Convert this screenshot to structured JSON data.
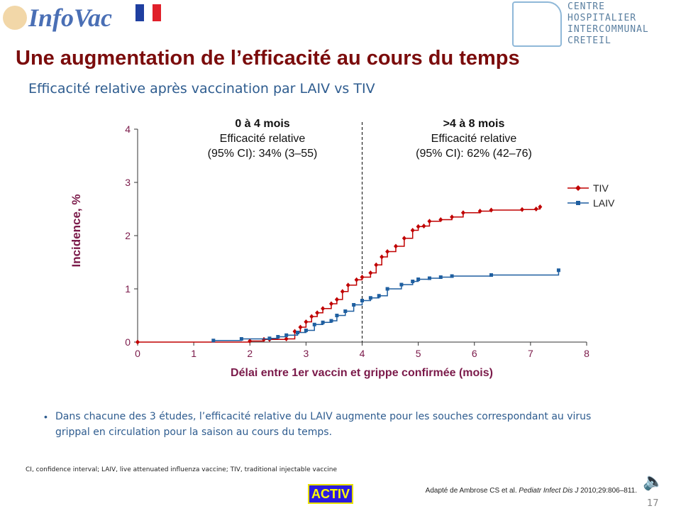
{
  "header": {
    "logo_text": "InfoVac",
    "flag_colors": [
      "#1f3fa0",
      "#ffffff",
      "#e0202a"
    ],
    "hospital_logo_lines": [
      "CENTRE",
      "HOSPITALIER",
      "INTERCOMMUNAL",
      "CRETEIL"
    ]
  },
  "title": "Une augmentation de l’efficacité au cours du temps",
  "subtitle": "Efficacité relative après vaccination par LAIV vs TIV",
  "chart_data": {
    "type": "line",
    "step": true,
    "xlabel": "Délai entre 1er vaccin et grippe confirmée (mois)",
    "ylabel": "Incidence, %",
    "xlim": [
      0,
      8
    ],
    "ylim": [
      0,
      4
    ],
    "xticks": [
      "0",
      "1",
      "2",
      "3",
      "4",
      "5",
      "6",
      "7",
      "8"
    ],
    "yticks": [
      "0",
      "1",
      "2",
      "3",
      "4"
    ],
    "grid": false,
    "legend_position": "right",
    "vline_x": 4,
    "annotations": [
      {
        "heading": "0  à 4 mois",
        "line1": "Efficacité relative",
        "line2": "(95% CI): 34% (3–55)"
      },
      {
        "heading": ">4 à 8 mois",
        "line1": "Efficacité relative",
        "line2": "(95% CI): 62% (42–76)"
      }
    ],
    "series": [
      {
        "name": "TIV",
        "color": "#c00000",
        "marker": "diamond",
        "x": [
          0,
          2.0,
          2.25,
          2.35,
          2.65,
          2.8,
          2.9,
          3.0,
          3.1,
          3.2,
          3.3,
          3.45,
          3.55,
          3.65,
          3.75,
          3.9,
          4.0,
          4.15,
          4.25,
          4.35,
          4.45,
          4.6,
          4.75,
          4.9,
          5.0,
          5.1,
          5.2,
          5.4,
          5.6,
          5.8,
          6.1,
          6.3,
          6.85,
          7.1,
          7.17
        ],
        "y": [
          0,
          0.02,
          0.05,
          0.05,
          0.06,
          0.2,
          0.28,
          0.38,
          0.48,
          0.55,
          0.63,
          0.72,
          0.8,
          0.95,
          1.07,
          1.17,
          1.22,
          1.3,
          1.45,
          1.6,
          1.7,
          1.8,
          1.95,
          2.1,
          2.17,
          2.18,
          2.27,
          2.3,
          2.35,
          2.43,
          2.46,
          2.48,
          2.49,
          2.5,
          2.54
        ]
      },
      {
        "name": "LAIV",
        "color": "#1f5fa0",
        "marker": "square",
        "x": [
          1.35,
          1.85,
          2.35,
          2.5,
          2.65,
          2.85,
          3.0,
          3.15,
          3.3,
          3.45,
          3.55,
          3.7,
          3.85,
          4.0,
          4.15,
          4.3,
          4.45,
          4.7,
          4.9,
          5.0,
          5.2,
          5.4,
          5.6,
          6.3,
          7.5
        ],
        "y": [
          0.03,
          0.06,
          0.07,
          0.1,
          0.13,
          0.18,
          0.22,
          0.33,
          0.37,
          0.4,
          0.5,
          0.58,
          0.7,
          0.78,
          0.83,
          0.87,
          1.0,
          1.08,
          1.14,
          1.18,
          1.2,
          1.22,
          1.24,
          1.26,
          1.35
        ]
      }
    ]
  },
  "bullet": "Dans chacune des 3 études, l’efficacité relative du LAIV augmente pour les souches correspondant au virus  grippal en circulation pour la saison au cours du temps.",
  "bullet_symbol": "•",
  "footnote": "CI, confidence interval; LAIV, live attenuated influenza vaccine; TIV, traditional injectable vaccine",
  "activ_label": "ACTIV",
  "citation": {
    "prefix": "Adapté de Ambrose CS et al. ",
    "journal": "Pediatr Infect Dis J",
    "suffix": " 2010;29:806–811."
  },
  "page_number": "17",
  "speaker_icon": "speaker-icon"
}
